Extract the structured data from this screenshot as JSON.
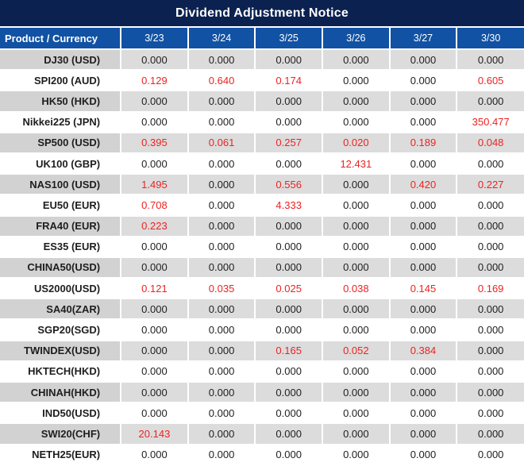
{
  "title": "Dividend Adjustment Notice",
  "colors": {
    "title_bg": "#0b2150",
    "header_bg": "#1152a4",
    "row_gray": "#dcdcdc",
    "label_gray": "#d2d2d2",
    "value_black": "#1e1e1e",
    "value_red": "#ee2222",
    "gridline": "#ffffff"
  },
  "chart_data": {
    "type": "table",
    "title": "Dividend Adjustment Notice",
    "columns": [
      "Product / Currency",
      "3/23",
      "3/24",
      "3/25",
      "3/26",
      "3/27",
      "3/30"
    ],
    "rows": [
      {
        "product": "DJ30 (USD)",
        "values": [
          "0.000",
          "0.000",
          "0.000",
          "0.000",
          "0.000",
          "0.000"
        ],
        "red": [
          0,
          0,
          0,
          0,
          0,
          0
        ]
      },
      {
        "product": "SPI200 (AUD)",
        "values": [
          "0.129",
          "0.640",
          "0.174",
          "0.000",
          "0.000",
          "0.605"
        ],
        "red": [
          1,
          1,
          1,
          0,
          0,
          1
        ]
      },
      {
        "product": "HK50 (HKD)",
        "values": [
          "0.000",
          "0.000",
          "0.000",
          "0.000",
          "0.000",
          "0.000"
        ],
        "red": [
          0,
          0,
          0,
          0,
          0,
          0
        ]
      },
      {
        "product": "Nikkei225 (JPN)",
        "values": [
          "0.000",
          "0.000",
          "0.000",
          "0.000",
          "0.000",
          "350.477"
        ],
        "red": [
          0,
          0,
          0,
          0,
          0,
          1
        ]
      },
      {
        "product": "SP500 (USD)",
        "values": [
          "0.395",
          "0.061",
          "0.257",
          "0.020",
          "0.189",
          "0.048"
        ],
        "red": [
          1,
          1,
          1,
          1,
          1,
          1
        ]
      },
      {
        "product": "UK100 (GBP)",
        "values": [
          "0.000",
          "0.000",
          "0.000",
          "12.431",
          "0.000",
          "0.000"
        ],
        "red": [
          0,
          0,
          0,
          1,
          0,
          0
        ]
      },
      {
        "product": "NAS100 (USD)",
        "values": [
          "1.495",
          "0.000",
          "0.556",
          "0.000",
          "0.420",
          "0.227"
        ],
        "red": [
          1,
          0,
          1,
          0,
          1,
          1
        ]
      },
      {
        "product": "EU50 (EUR)",
        "values": [
          "0.708",
          "0.000",
          "4.333",
          "0.000",
          "0.000",
          "0.000"
        ],
        "red": [
          1,
          0,
          1,
          0,
          0,
          0
        ]
      },
      {
        "product": "FRA40 (EUR)",
        "values": [
          "0.223",
          "0.000",
          "0.000",
          "0.000",
          "0.000",
          "0.000"
        ],
        "red": [
          1,
          0,
          0,
          0,
          0,
          0
        ]
      },
      {
        "product": "ES35 (EUR)",
        "values": [
          "0.000",
          "0.000",
          "0.000",
          "0.000",
          "0.000",
          "0.000"
        ],
        "red": [
          0,
          0,
          0,
          0,
          0,
          0
        ]
      },
      {
        "product": "CHINA50(USD)",
        "values": [
          "0.000",
          "0.000",
          "0.000",
          "0.000",
          "0.000",
          "0.000"
        ],
        "red": [
          0,
          0,
          0,
          0,
          0,
          0
        ]
      },
      {
        "product": "US2000(USD)",
        "values": [
          "0.121",
          "0.035",
          "0.025",
          "0.038",
          "0.145",
          "0.169"
        ],
        "red": [
          1,
          1,
          1,
          1,
          1,
          1
        ]
      },
      {
        "product": "SA40(ZAR)",
        "values": [
          "0.000",
          "0.000",
          "0.000",
          "0.000",
          "0.000",
          "0.000"
        ],
        "red": [
          0,
          0,
          0,
          0,
          0,
          0
        ]
      },
      {
        "product": "SGP20(SGD)",
        "values": [
          "0.000",
          "0.000",
          "0.000",
          "0.000",
          "0.000",
          "0.000"
        ],
        "red": [
          0,
          0,
          0,
          0,
          0,
          0
        ]
      },
      {
        "product": "TWINDEX(USD)",
        "values": [
          "0.000",
          "0.000",
          "0.165",
          "0.052",
          "0.384",
          "0.000"
        ],
        "red": [
          0,
          0,
          1,
          1,
          1,
          0
        ]
      },
      {
        "product": "HKTECH(HKD)",
        "values": [
          "0.000",
          "0.000",
          "0.000",
          "0.000",
          "0.000",
          "0.000"
        ],
        "red": [
          0,
          0,
          0,
          0,
          0,
          0
        ]
      },
      {
        "product": "CHINAH(HKD)",
        "values": [
          "0.000",
          "0.000",
          "0.000",
          "0.000",
          "0.000",
          "0.000"
        ],
        "red": [
          0,
          0,
          0,
          0,
          0,
          0
        ]
      },
      {
        "product": "IND50(USD)",
        "values": [
          "0.000",
          "0.000",
          "0.000",
          "0.000",
          "0.000",
          "0.000"
        ],
        "red": [
          0,
          0,
          0,
          0,
          0,
          0
        ]
      },
      {
        "product": "SWI20(CHF)",
        "values": [
          "20.143",
          "0.000",
          "0.000",
          "0.000",
          "0.000",
          "0.000"
        ],
        "red": [
          1,
          0,
          0,
          0,
          0,
          0
        ]
      },
      {
        "product": "NETH25(EUR)",
        "values": [
          "0.000",
          "0.000",
          "0.000",
          "0.000",
          "0.000",
          "0.000"
        ],
        "red": [
          0,
          0,
          0,
          0,
          0,
          0
        ]
      }
    ]
  }
}
